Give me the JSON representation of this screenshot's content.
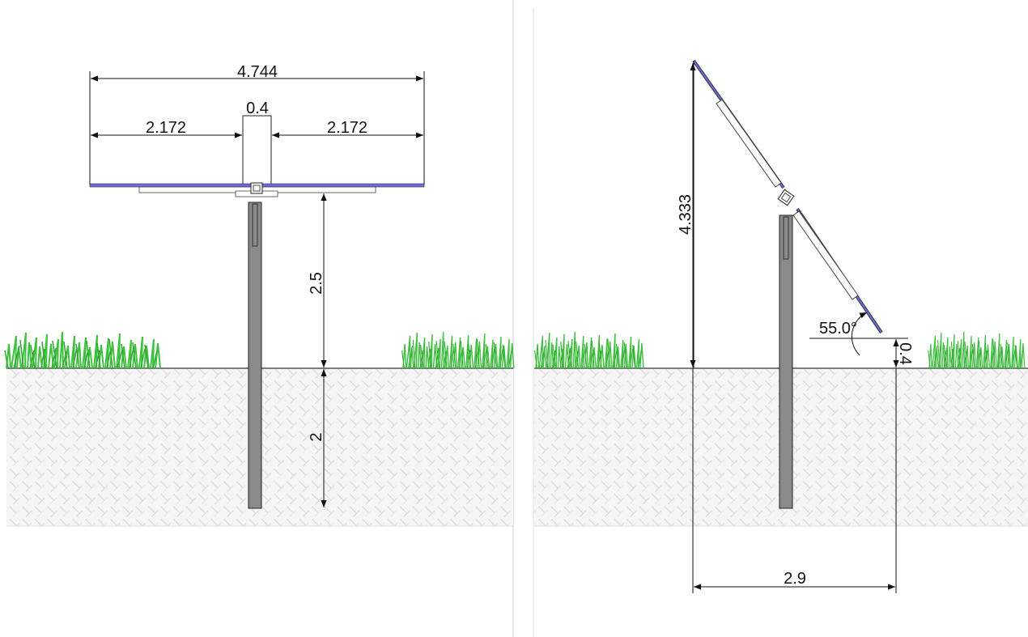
{
  "front_view": {
    "overall_width": "4.744",
    "post_width": "0.4",
    "left_wing": "2.172",
    "right_wing": "2.172",
    "height_above_ground": "2.5",
    "embed_depth": "2"
  },
  "side_view": {
    "total_height": "4.333",
    "tilt_angle": "55.0°",
    "edge_clearance": "0.4",
    "horizontal_span": "2.9"
  },
  "colors": {
    "panel": "#6b6bdc",
    "post": "#8a8a8a",
    "grass": "#3fc13f",
    "soil": "#f4f4f4"
  }
}
